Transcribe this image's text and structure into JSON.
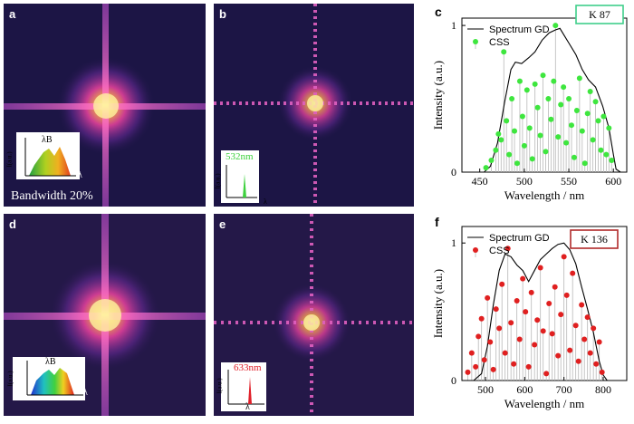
{
  "panels": {
    "a": {
      "label": "a",
      "inset_peak": "λB",
      "inset_ylabel": "I(a.u.)",
      "inset_xlabel": "λ",
      "caption": "Bandwidth 20%"
    },
    "b": {
      "label": "b",
      "inset_peak": "532nm",
      "inset_ylabel": "I(a.u.)",
      "inset_xlabel": "λ",
      "peak_color": "#3fd13f"
    },
    "d": {
      "label": "d",
      "inset_peak": "λB",
      "inset_ylabel": "I(a.u.)",
      "inset_xlabel": "λ"
    },
    "e": {
      "label": "e",
      "inset_peak": "633nm",
      "inset_ylabel": "I(a.u.)",
      "inset_xlabel": "λ",
      "peak_color": "#e0202a"
    }
  },
  "chart_data": [
    {
      "panel": "c",
      "type": "line+stem",
      "badge": "K  87",
      "badge_color": "#3fcf8a",
      "legend": [
        "Spectrum GD",
        "CSS"
      ],
      "xlabel": "Wavelength / nm",
      "ylabel": "Intensity (a.u.)",
      "xlim": [
        430,
        615
      ],
      "ylim": [
        0,
        1.05
      ],
      "xticks": [
        450,
        500,
        550,
        600
      ],
      "yticks": [
        0,
        1
      ],
      "css_color": "#3ee63e",
      "spectrum": {
        "x": [
          430,
          455,
          462,
          470,
          478,
          485,
          490,
          497,
          505,
          512,
          520,
          528,
          535,
          540,
          545,
          550,
          558,
          565,
          572,
          580,
          588,
          595,
          600,
          603,
          608,
          615
        ],
        "y": [
          0,
          0,
          0.04,
          0.2,
          0.48,
          0.7,
          0.75,
          0.74,
          0.78,
          0.82,
          0.9,
          0.95,
          0.97,
          0.98,
          0.93,
          0.88,
          0.8,
          0.7,
          0.63,
          0.58,
          0.45,
          0.3,
          0.12,
          0.02,
          0,
          0
        ]
      },
      "css": {
        "x": [
          457,
          463,
          468,
          471,
          474,
          477,
          480,
          483,
          486,
          489,
          492,
          495,
          498,
          500,
          503,
          506,
          509,
          512,
          515,
          518,
          521,
          524,
          527,
          530,
          533,
          535,
          538,
          541,
          544,
          547,
          550,
          553,
          556,
          559,
          562,
          565,
          568,
          571,
          574,
          577,
          580,
          583,
          586,
          589,
          592,
          595,
          598
        ],
        "y": [
          0.03,
          0.08,
          0.15,
          0.26,
          0.22,
          0.82,
          0.35,
          0.12,
          0.5,
          0.28,
          0.06,
          0.62,
          0.38,
          0.18,
          0.56,
          0.3,
          0.09,
          0.6,
          0.44,
          0.25,
          0.66,
          0.14,
          0.5,
          0.36,
          0.62,
          1.0,
          0.24,
          0.46,
          0.58,
          0.2,
          0.5,
          0.32,
          0.1,
          0.42,
          0.64,
          0.28,
          0.06,
          0.4,
          0.55,
          0.22,
          0.48,
          0.35,
          0.15,
          0.38,
          0.12,
          0.3,
          0.08
        ]
      }
    },
    {
      "panel": "f",
      "type": "line+stem",
      "badge": "K  136",
      "badge_color": "#b02a2a",
      "legend": [
        "Spectrum GD",
        "CSS"
      ],
      "xlabel": "Wavelength / nm",
      "ylabel": "Intensity (a.u.)",
      "xlim": [
        440,
        860
      ],
      "ylim": [
        0,
        1.12
      ],
      "xticks": [
        500,
        600,
        700,
        800
      ],
      "yticks": [
        0,
        1
      ],
      "css_color": "#e02020",
      "spectrum": {
        "x": [
          440,
          470,
          490,
          505,
          520,
          535,
          550,
          565,
          580,
          595,
          610,
          625,
          640,
          655,
          670,
          685,
          700,
          715,
          730,
          745,
          760,
          775,
          790,
          800,
          810,
          860
        ],
        "y": [
          0,
          0,
          0.05,
          0.25,
          0.55,
          0.8,
          0.92,
          0.9,
          0.84,
          0.8,
          0.72,
          0.8,
          0.88,
          0.92,
          0.96,
          0.99,
          1.0,
          0.95,
          0.85,
          0.68,
          0.52,
          0.35,
          0.14,
          0.04,
          0,
          0
        ]
      },
      "css": {
        "x": [
          455,
          465,
          475,
          482,
          490,
          497,
          505,
          512,
          520,
          527,
          535,
          542,
          550,
          557,
          565,
          572,
          580,
          587,
          595,
          602,
          610,
          617,
          625,
          632,
          640,
          647,
          655,
          662,
          670,
          677,
          685,
          692,
          700,
          707,
          715,
          722,
          730,
          737,
          745,
          752,
          760,
          767,
          775,
          782,
          790,
          797
        ],
        "y": [
          0.06,
          0.2,
          0.1,
          0.32,
          0.45,
          0.15,
          0.6,
          0.28,
          0.08,
          0.52,
          0.38,
          0.7,
          0.2,
          0.96,
          0.42,
          0.12,
          0.58,
          0.3,
          0.74,
          0.5,
          0.1,
          0.64,
          0.26,
          0.44,
          0.82,
          0.36,
          0.05,
          0.56,
          0.34,
          0.68,
          0.18,
          0.48,
          0.9,
          0.62,
          0.22,
          0.78,
          0.4,
          0.14,
          0.55,
          0.3,
          0.46,
          0.2,
          0.38,
          0.12,
          0.28,
          0.06
        ]
      }
    }
  ]
}
